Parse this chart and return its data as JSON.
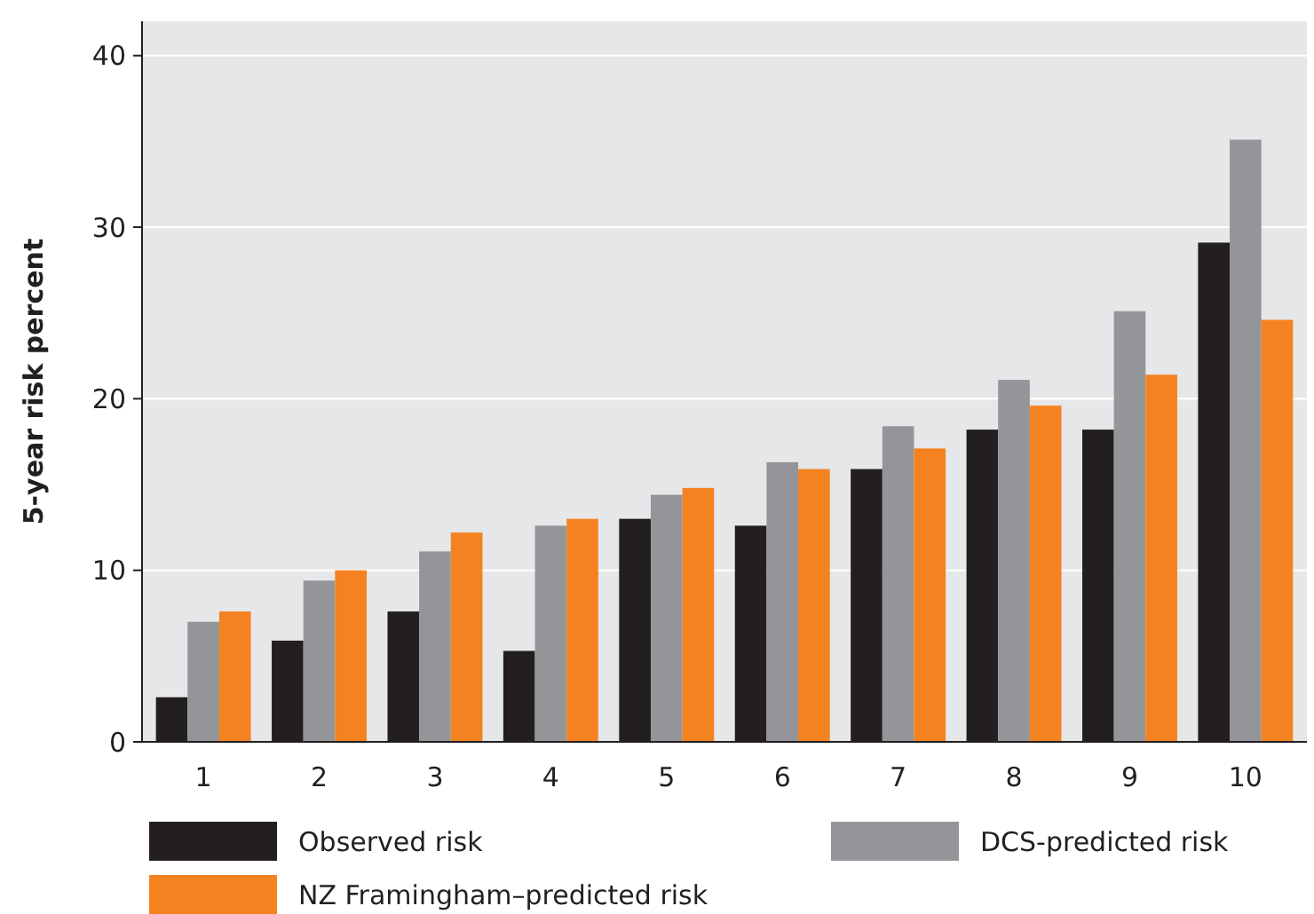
{
  "chart_data": {
    "type": "bar",
    "ylabel": "5-year risk percent",
    "categories": [
      "1",
      "2",
      "3",
      "4",
      "5",
      "6",
      "7",
      "8",
      "9",
      "10"
    ],
    "series": [
      {
        "name": "Observed risk",
        "color": "#231f20",
        "values": [
          2.6,
          5.9,
          7.6,
          5.3,
          13.0,
          12.6,
          15.9,
          18.2,
          18.2,
          29.1
        ]
      },
      {
        "name": "DCS-predicted risk",
        "color": "#939598",
        "values": [
          7.0,
          9.4,
          11.1,
          12.6,
          14.4,
          16.3,
          18.4,
          21.1,
          25.1,
          35.1
        ]
      },
      {
        "name": "NZ Framingham–predicted risk",
        "color": "#f58220",
        "values": [
          7.6,
          10.0,
          12.2,
          13.0,
          14.8,
          15.9,
          17.1,
          19.6,
          21.4,
          24.6
        ]
      }
    ],
    "ylim": [
      0,
      42
    ],
    "yticks": [
      0,
      10,
      20,
      30,
      40
    ],
    "grid": "y",
    "legend": "bottom"
  }
}
